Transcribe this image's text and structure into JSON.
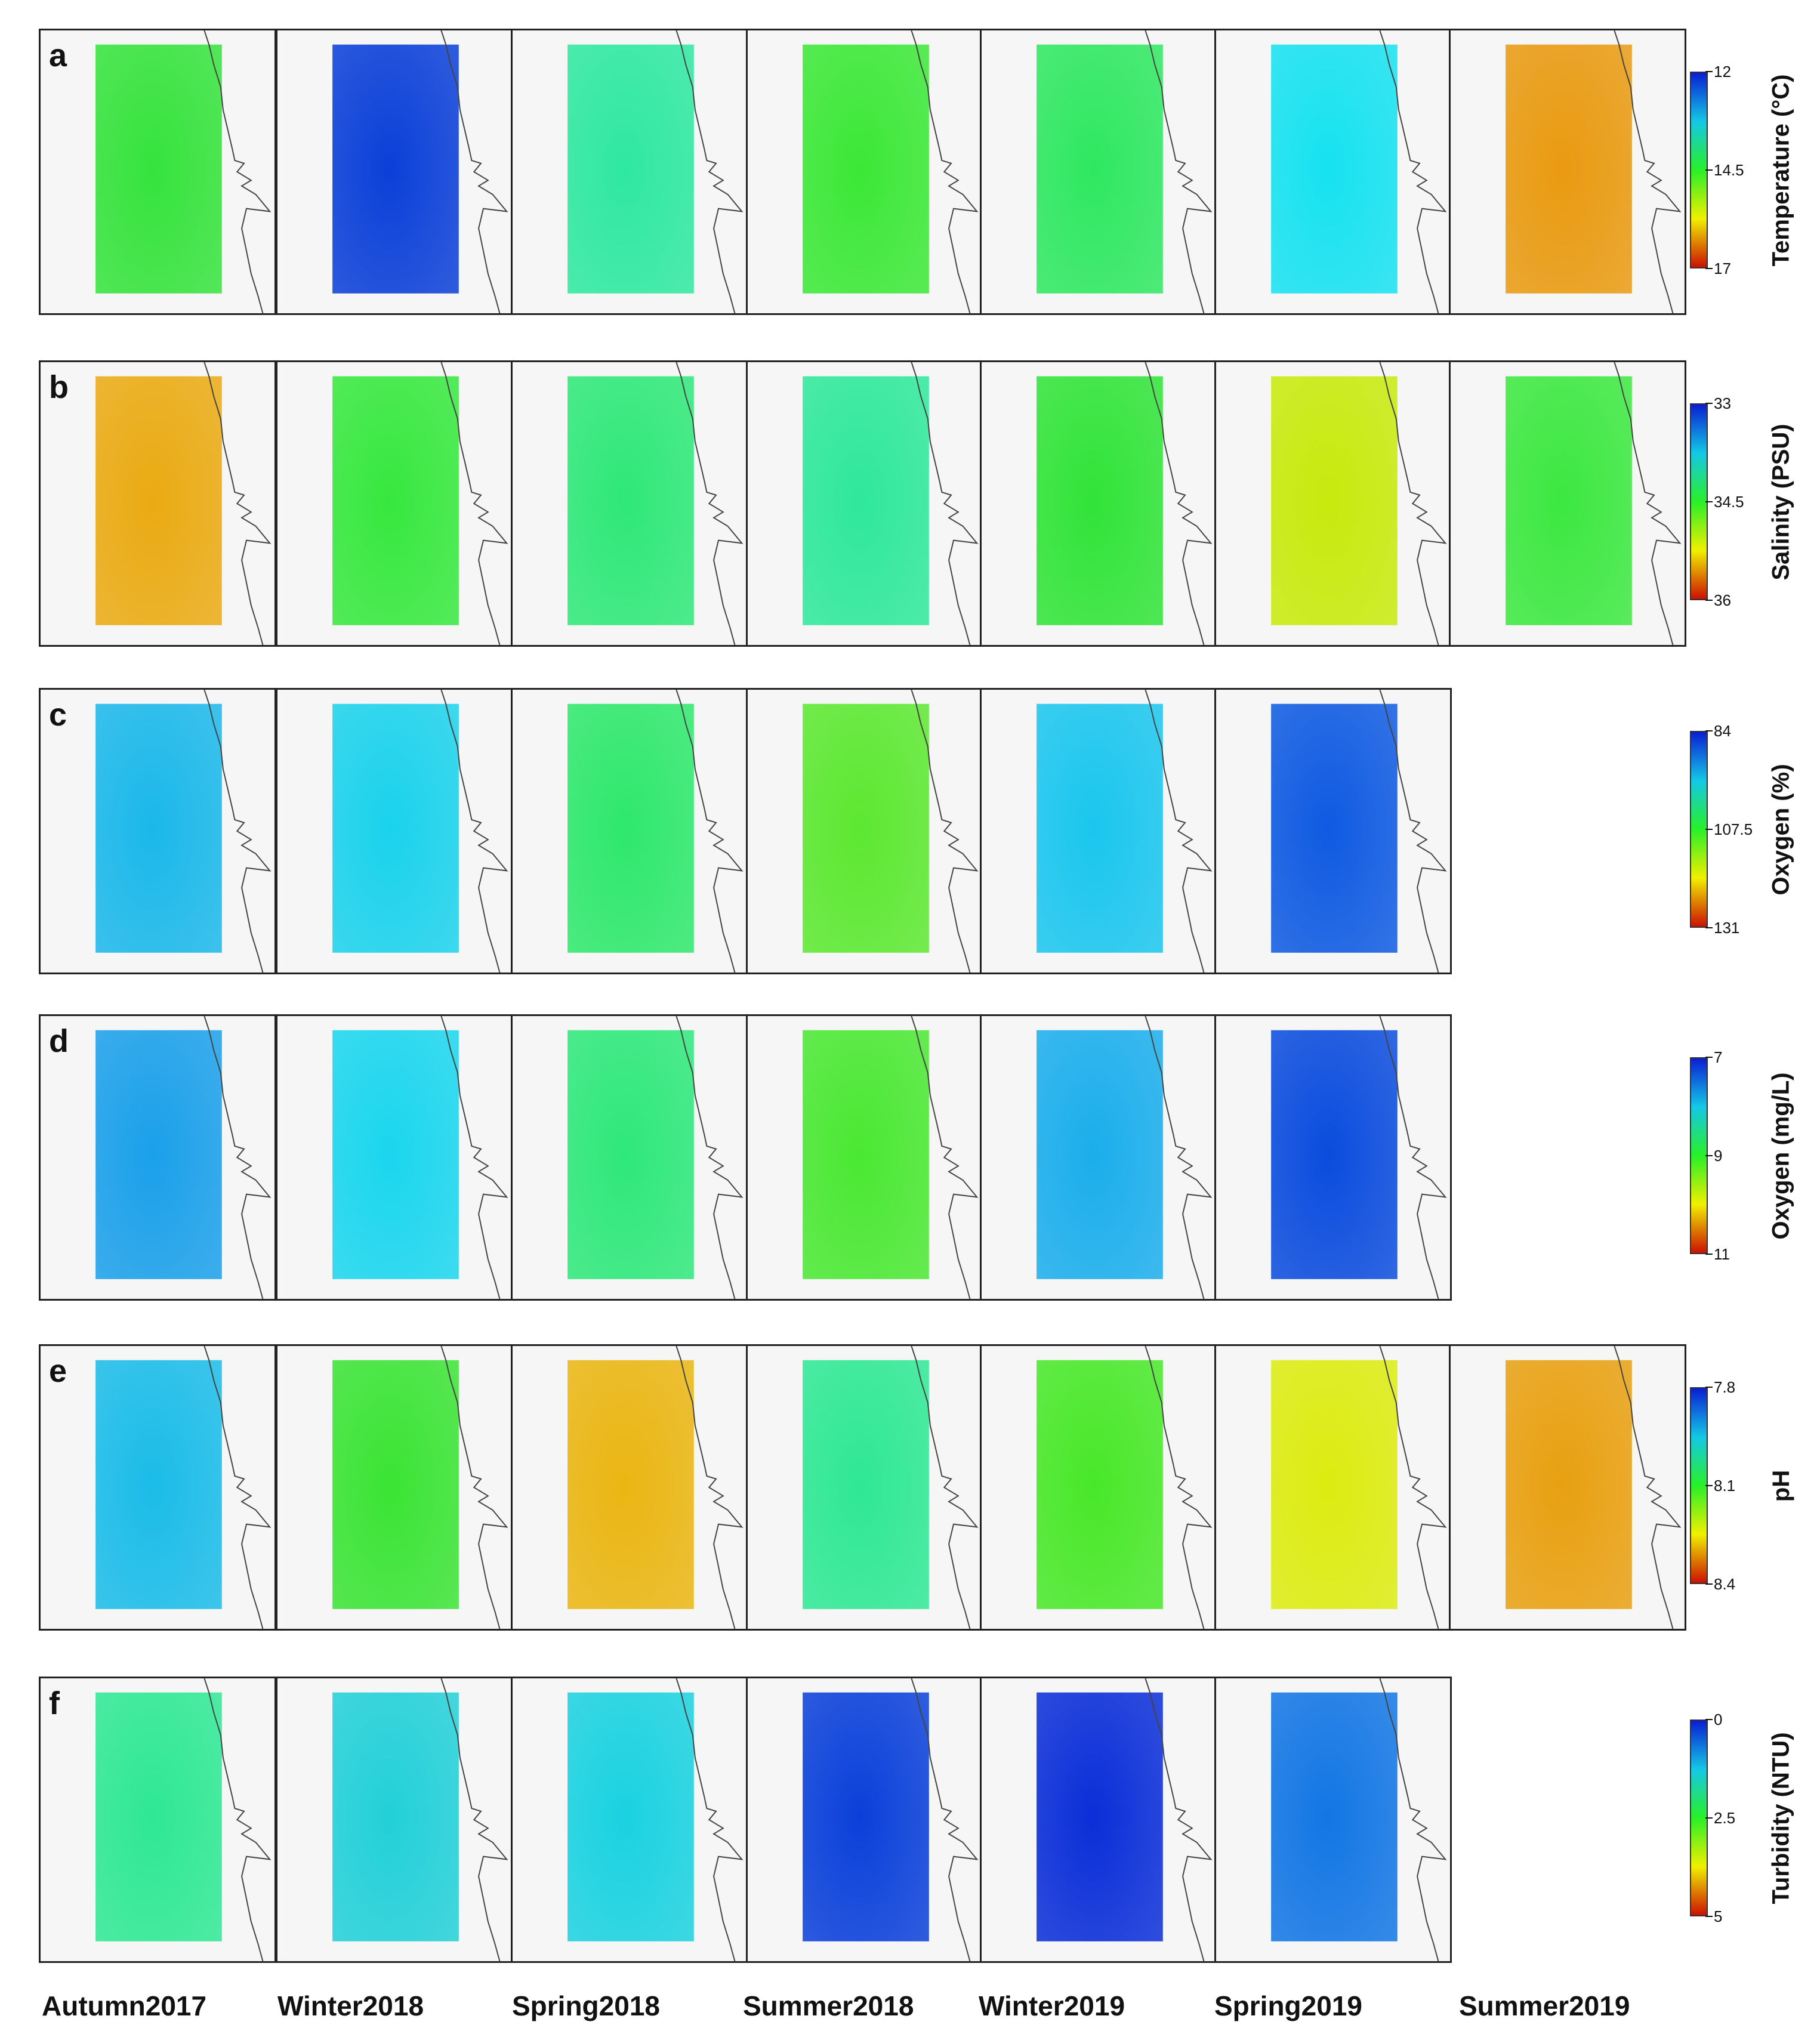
{
  "seasons": [
    "Autumn2017",
    "Winter2018",
    "Spring2018",
    "Summer2018",
    "Winter2019",
    "Spring2019",
    "Summer2019"
  ],
  "colormap": [
    "#0a1ed2",
    "#14c8e6",
    "#28f028",
    "#f0f000",
    "#cc1100"
  ],
  "rows": [
    {
      "label": "a",
      "colorbar_title": "Temperature (°C)",
      "ticks": [
        "12",
        "14.5",
        "17"
      ],
      "panels": [
        "#35e33c",
        "#0a3fd8",
        "#2ee8a0",
        "#3be836",
        "#2ee860",
        "#16e2f0",
        "#e99a10"
      ]
    },
    {
      "label": "b",
      "colorbar_title": "Salinity (PSU)",
      "ticks": [
        "33",
        "34.5",
        "36"
      ],
      "panels": [
        "#eaaa12",
        "#36e83e",
        "#2ee878",
        "#2ee89a",
        "#30e438",
        "#c8ea0c",
        "#3ce840"
      ]
    },
    {
      "label": "c",
      "colorbar_title": "Oxygen (%)",
      "ticks": [
        "84",
        "107.5",
        "131"
      ],
      "panels": [
        "#1ab8ea",
        "#1ad2ec",
        "#2ee86c",
        "#5ce830",
        "#1ac6ee",
        "#0e5ae2"
      ]
    },
    {
      "label": "d",
      "colorbar_title": "Oxygen (mg/L)",
      "ticks": [
        "7",
        "9",
        "11"
      ],
      "panels": [
        "#1aa0ea",
        "#1ad6ee",
        "#2ee87a",
        "#4ae832",
        "#1aaeec",
        "#0a4cde"
      ]
    },
    {
      "label": "e",
      "colorbar_title": "pH",
      "ticks": [
        "7.8",
        "8.1",
        "8.4"
      ],
      "panels": [
        "#1abce8",
        "#3ae434",
        "#eab612",
        "#2ee894",
        "#48e828",
        "#dcec10",
        "#e8a010"
      ]
    },
    {
      "label": "f",
      "colorbar_title": "Turbidity (NTU)",
      "ticks": [
        "0",
        "2.5",
        "5"
      ],
      "panels": [
        "#2ee894",
        "#22d0d8",
        "#1ad2e0",
        "#0a40da",
        "#0a2ed8",
        "#1276e4"
      ]
    }
  ]
}
